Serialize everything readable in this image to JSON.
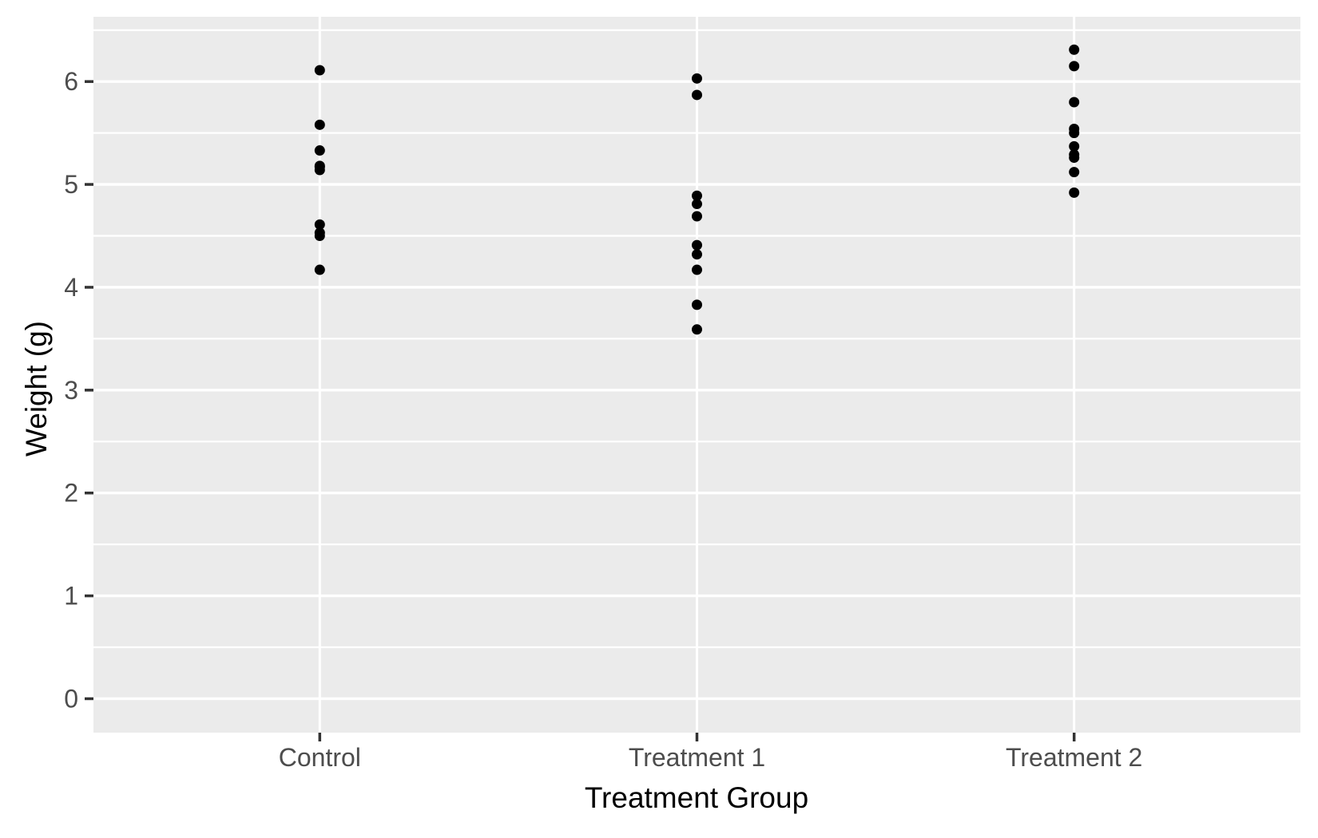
{
  "chart_data": {
    "type": "scatter",
    "title": "",
    "xlabel": "Treatment Group",
    "ylabel": "Weight (g)",
    "categories": [
      "Control",
      "Treatment 1",
      "Treatment 2"
    ],
    "series": [
      {
        "name": "Control",
        "values": [
          4.17,
          5.58,
          5.18,
          6.11,
          4.5,
          4.61,
          5.17,
          4.53,
          5.33,
          5.14
        ]
      },
      {
        "name": "Treatment 1",
        "values": [
          4.81,
          4.17,
          4.41,
          3.59,
          5.87,
          3.83,
          6.03,
          4.89,
          4.32,
          4.69
        ]
      },
      {
        "name": "Treatment 2",
        "values": [
          6.31,
          5.12,
          5.54,
          5.5,
          5.37,
          5.29,
          4.92,
          6.15,
          5.8,
          5.26
        ]
      }
    ],
    "ylim": [
      -0.33,
      6.63
    ],
    "y_major_ticks": [
      0,
      1,
      2,
      3,
      4,
      5,
      6
    ],
    "y_minor_ticks": [
      0.5,
      1.5,
      2.5,
      3.5,
      4.5,
      5.5,
      6.5
    ],
    "grid": true,
    "legend": "none",
    "style": {
      "panel_bg": "#EBEBEB",
      "grid_color": "#FFFFFF",
      "point_color": "#000000",
      "tick_label_color": "#4D4D4D",
      "axis_title_color": "#000000",
      "tick_mark_color": "#333333",
      "background": "#FFFFFF"
    }
  }
}
